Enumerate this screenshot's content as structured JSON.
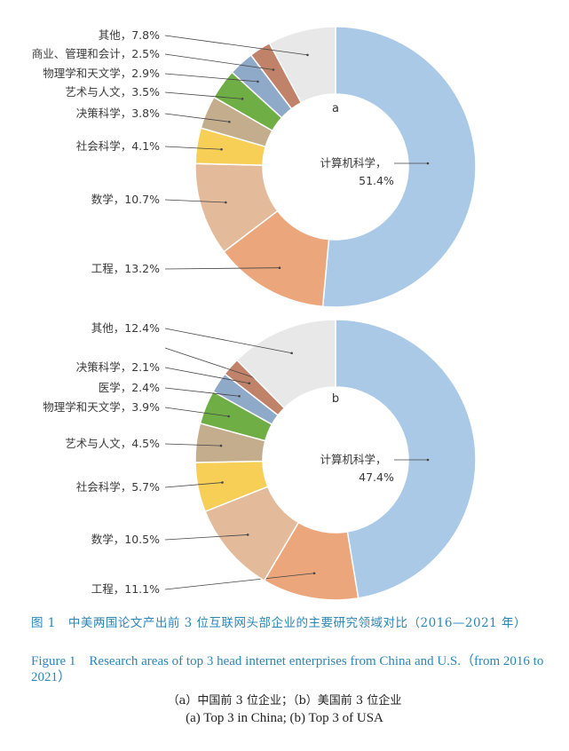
{
  "chart_data": [
    {
      "type": "pie",
      "panel": "a",
      "center_label": "计算机科学，",
      "center_value": "51.4%",
      "slices": [
        {
          "name": "计算机科学",
          "value": 51.4,
          "color": "#a9c9e6",
          "label": "计算机科学，51.4%"
        },
        {
          "name": "工程",
          "value": 13.2,
          "color": "#eba77b",
          "label": "工程，13.2%"
        },
        {
          "name": "数学",
          "value": 10.7,
          "color": "#e3bb9b",
          "label": "数学，10.7%"
        },
        {
          "name": "社会科学",
          "value": 4.1,
          "color": "#f7cf57",
          "label": "社会科学，4.1%"
        },
        {
          "name": "决策科学",
          "value": 3.8,
          "color": "#c3ad8d",
          "label": "决策科学，3.8%"
        },
        {
          "name": "艺术与人文",
          "value": 3.5,
          "color": "#6fae45",
          "label": "艺术与人文，3.5%"
        },
        {
          "name": "物理学和天文学",
          "value": 2.9,
          "color": "#8fa9c8",
          "label": "物理学和天文学，2.9%"
        },
        {
          "name": "商业、管理和会计",
          "value": 2.5,
          "color": "#c1826a",
          "label": "商业、管理和会计，2.5%"
        },
        {
          "name": "其他",
          "value": 7.8,
          "color": "#e8e8e8",
          "label": "其他，7.8%"
        }
      ]
    },
    {
      "type": "pie",
      "panel": "b",
      "center_label": "计算机科学，",
      "center_value": "47.4%",
      "slices": [
        {
          "name": "计算机科学",
          "value": 47.4,
          "color": "#a9c9e6",
          "label": "计算机科学，47.4%"
        },
        {
          "name": "工程",
          "value": 11.1,
          "color": "#eba77b",
          "label": "工程，11.1%"
        },
        {
          "name": "数学",
          "value": 10.5,
          "color": "#e3bb9b",
          "label": "数学，10.5%"
        },
        {
          "name": "社会科学",
          "value": 5.7,
          "color": "#f7cf57",
          "label": "社会科学，5.7%"
        },
        {
          "name": "艺术与人文",
          "value": 4.5,
          "color": "#c3ad8d",
          "label": "艺术与人文，4.5%"
        },
        {
          "name": "物理学和天文学",
          "value": 3.9,
          "color": "#6fae45",
          "label": "物理学和天文学，3.9%"
        },
        {
          "name": "医学",
          "value": 2.4,
          "color": "#8fa9c8",
          "label": "医学，2.4%"
        },
        {
          "name": "决策科学",
          "value": 2.1,
          "color": "#c1826a",
          "label": "决策科学，2.1%"
        },
        {
          "name": "",
          "value": 0.0,
          "color": "#e8e8e8",
          "label": ""
        },
        {
          "name": "其他",
          "value": 12.4,
          "color": "#e8e8e8",
          "label": "其他，12.4%"
        }
      ]
    }
  ],
  "caption": {
    "cn_title": "图 1　中美两国论文产出前 3 位互联网头部企业的主要研究领域对比（2016—2021 年）",
    "en_title": "Figure 1　Research areas of top 3 head internet enterprises from China and U.S.（from 2016 to 2021）",
    "cn_sub": "（a）中国前 3 位企业；（b）美国前 3 位企业",
    "en_sub": "(a) Top 3 in China; (b) Top 3 of USA"
  }
}
